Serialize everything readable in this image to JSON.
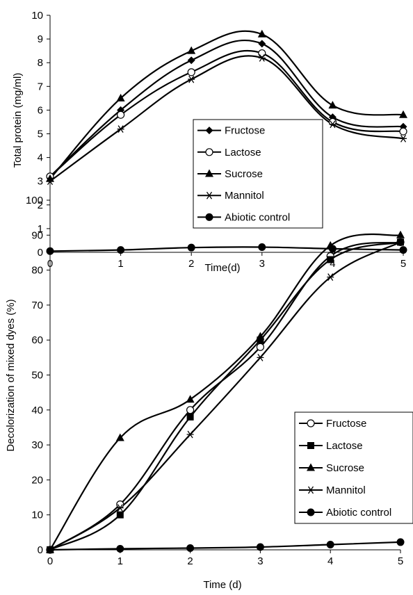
{
  "chart_data": [
    {
      "type": "line",
      "xlabel": "Time(d)",
      "ylabel": "Total  protein  (mg/ml)",
      "xlim": [
        0,
        5
      ],
      "ylim": [
        0,
        10
      ],
      "x_ticks": [
        "0",
        "1",
        "2",
        "3",
        "4",
        "5"
      ],
      "y_ticks": [
        "0",
        "1",
        "2",
        "3",
        "4",
        "5",
        "6",
        "7",
        "8",
        "9",
        "10"
      ],
      "x": [
        0,
        1,
        2,
        3,
        4,
        5
      ],
      "legend_position": "center-right",
      "grid": false,
      "series": [
        {
          "name": "Fructose",
          "marker": "diamond",
          "values": [
            3.2,
            6.0,
            8.1,
            8.8,
            5.7,
            5.3
          ]
        },
        {
          "name": "Lactose",
          "marker": "open-circle",
          "values": [
            3.2,
            5.8,
            7.6,
            8.4,
            5.5,
            5.1
          ]
        },
        {
          "name": "Sucrose",
          "marker": "triangle",
          "values": [
            3.1,
            6.5,
            8.5,
            9.2,
            6.2,
            5.8
          ]
        },
        {
          "name": "Mannitol",
          "marker": "star",
          "values": [
            3.0,
            5.2,
            7.3,
            8.2,
            5.4,
            4.8
          ]
        },
        {
          "name": "Abiotic control",
          "marker": "filled-circle",
          "values": [
            0.05,
            0.1,
            0.2,
            0.22,
            0.15,
            0.1
          ]
        }
      ]
    },
    {
      "type": "line",
      "xlabel": "Time (d)",
      "ylabel": "Decolorization of mixed dyes (%)",
      "xlim": [
        0,
        5
      ],
      "ylim": [
        0,
        100
      ],
      "x_ticks": [
        "0",
        "1",
        "2",
        "3",
        "4",
        "5"
      ],
      "y_ticks": [
        "0",
        "10",
        "20",
        "30",
        "40",
        "50",
        "60",
        "70",
        "80",
        "90",
        "100"
      ],
      "x": [
        0,
        1,
        2,
        3,
        4,
        5
      ],
      "legend_position": "center-right",
      "grid": false,
      "series": [
        {
          "name": "Fructose",
          "marker": "open-circle",
          "values": [
            0,
            13,
            40,
            58,
            84,
            88
          ]
        },
        {
          "name": "Lactose",
          "marker": "square",
          "values": [
            0,
            10,
            38,
            60,
            83,
            88
          ]
        },
        {
          "name": "Sucrose",
          "marker": "triangle",
          "values": [
            0,
            32,
            43,
            61,
            87,
            90
          ]
        },
        {
          "name": "Mannitol",
          "marker": "star",
          "values": [
            0,
            12,
            33,
            55,
            78,
            88
          ]
        },
        {
          "name": "Abiotic control",
          "marker": "filled-circle",
          "values": [
            0,
            0.3,
            0.5,
            0.8,
            1.5,
            2.2
          ]
        }
      ]
    }
  ]
}
